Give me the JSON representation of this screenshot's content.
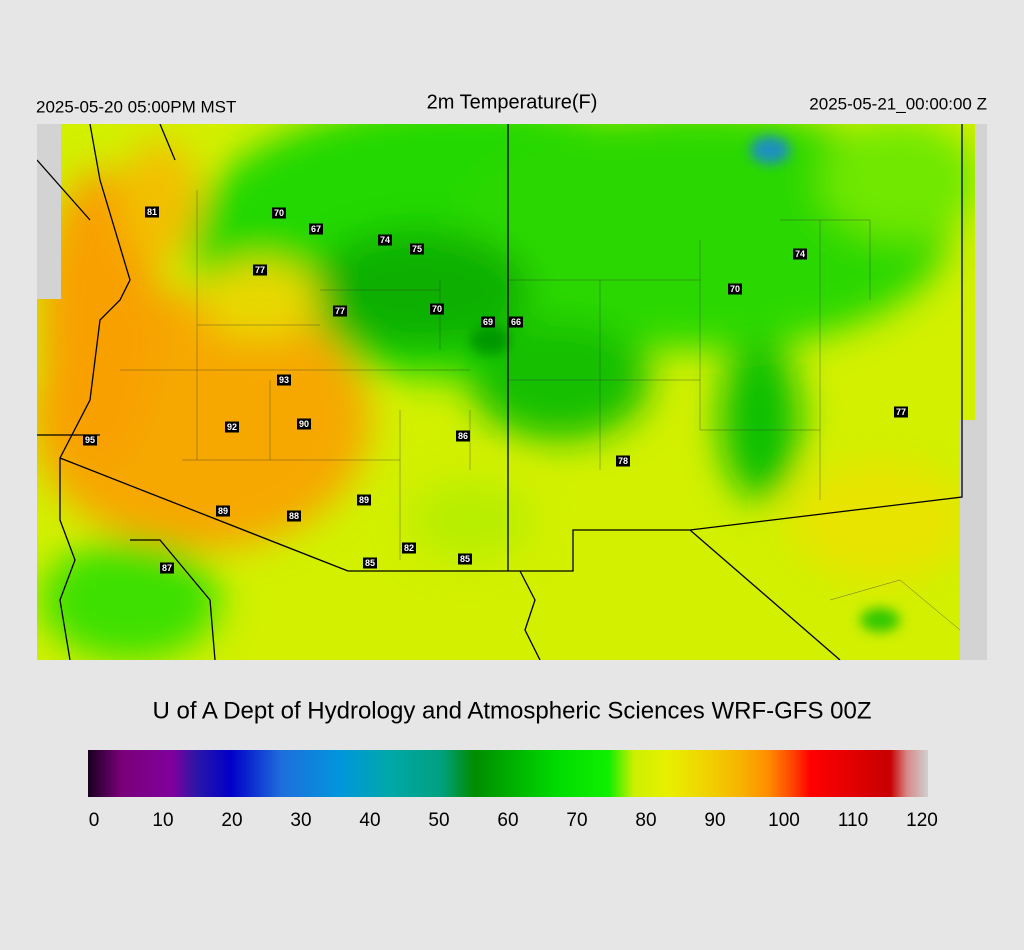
{
  "header": {
    "left": "2025-05-20 05:00PM MST",
    "title": "2m Temperature(F)",
    "right": "2025-05-21_00:00:00 Z"
  },
  "map": {
    "labels": [
      81,
      70,
      67,
      74,
      75,
      77,
      77,
      70,
      69,
      66,
      74,
      70,
      93,
      92,
      90,
      86,
      95,
      78,
      77,
      89,
      89,
      88,
      82,
      85,
      85,
      87
    ]
  },
  "footer": "U of A Dept of Hydrology and Atmospheric Sciences WRF-GFS 00Z",
  "colorbar": {
    "range": [
      0,
      120
    ],
    "ticks": [
      0,
      10,
      20,
      30,
      40,
      50,
      60,
      70,
      80,
      90,
      100,
      110,
      120
    ]
  }
}
